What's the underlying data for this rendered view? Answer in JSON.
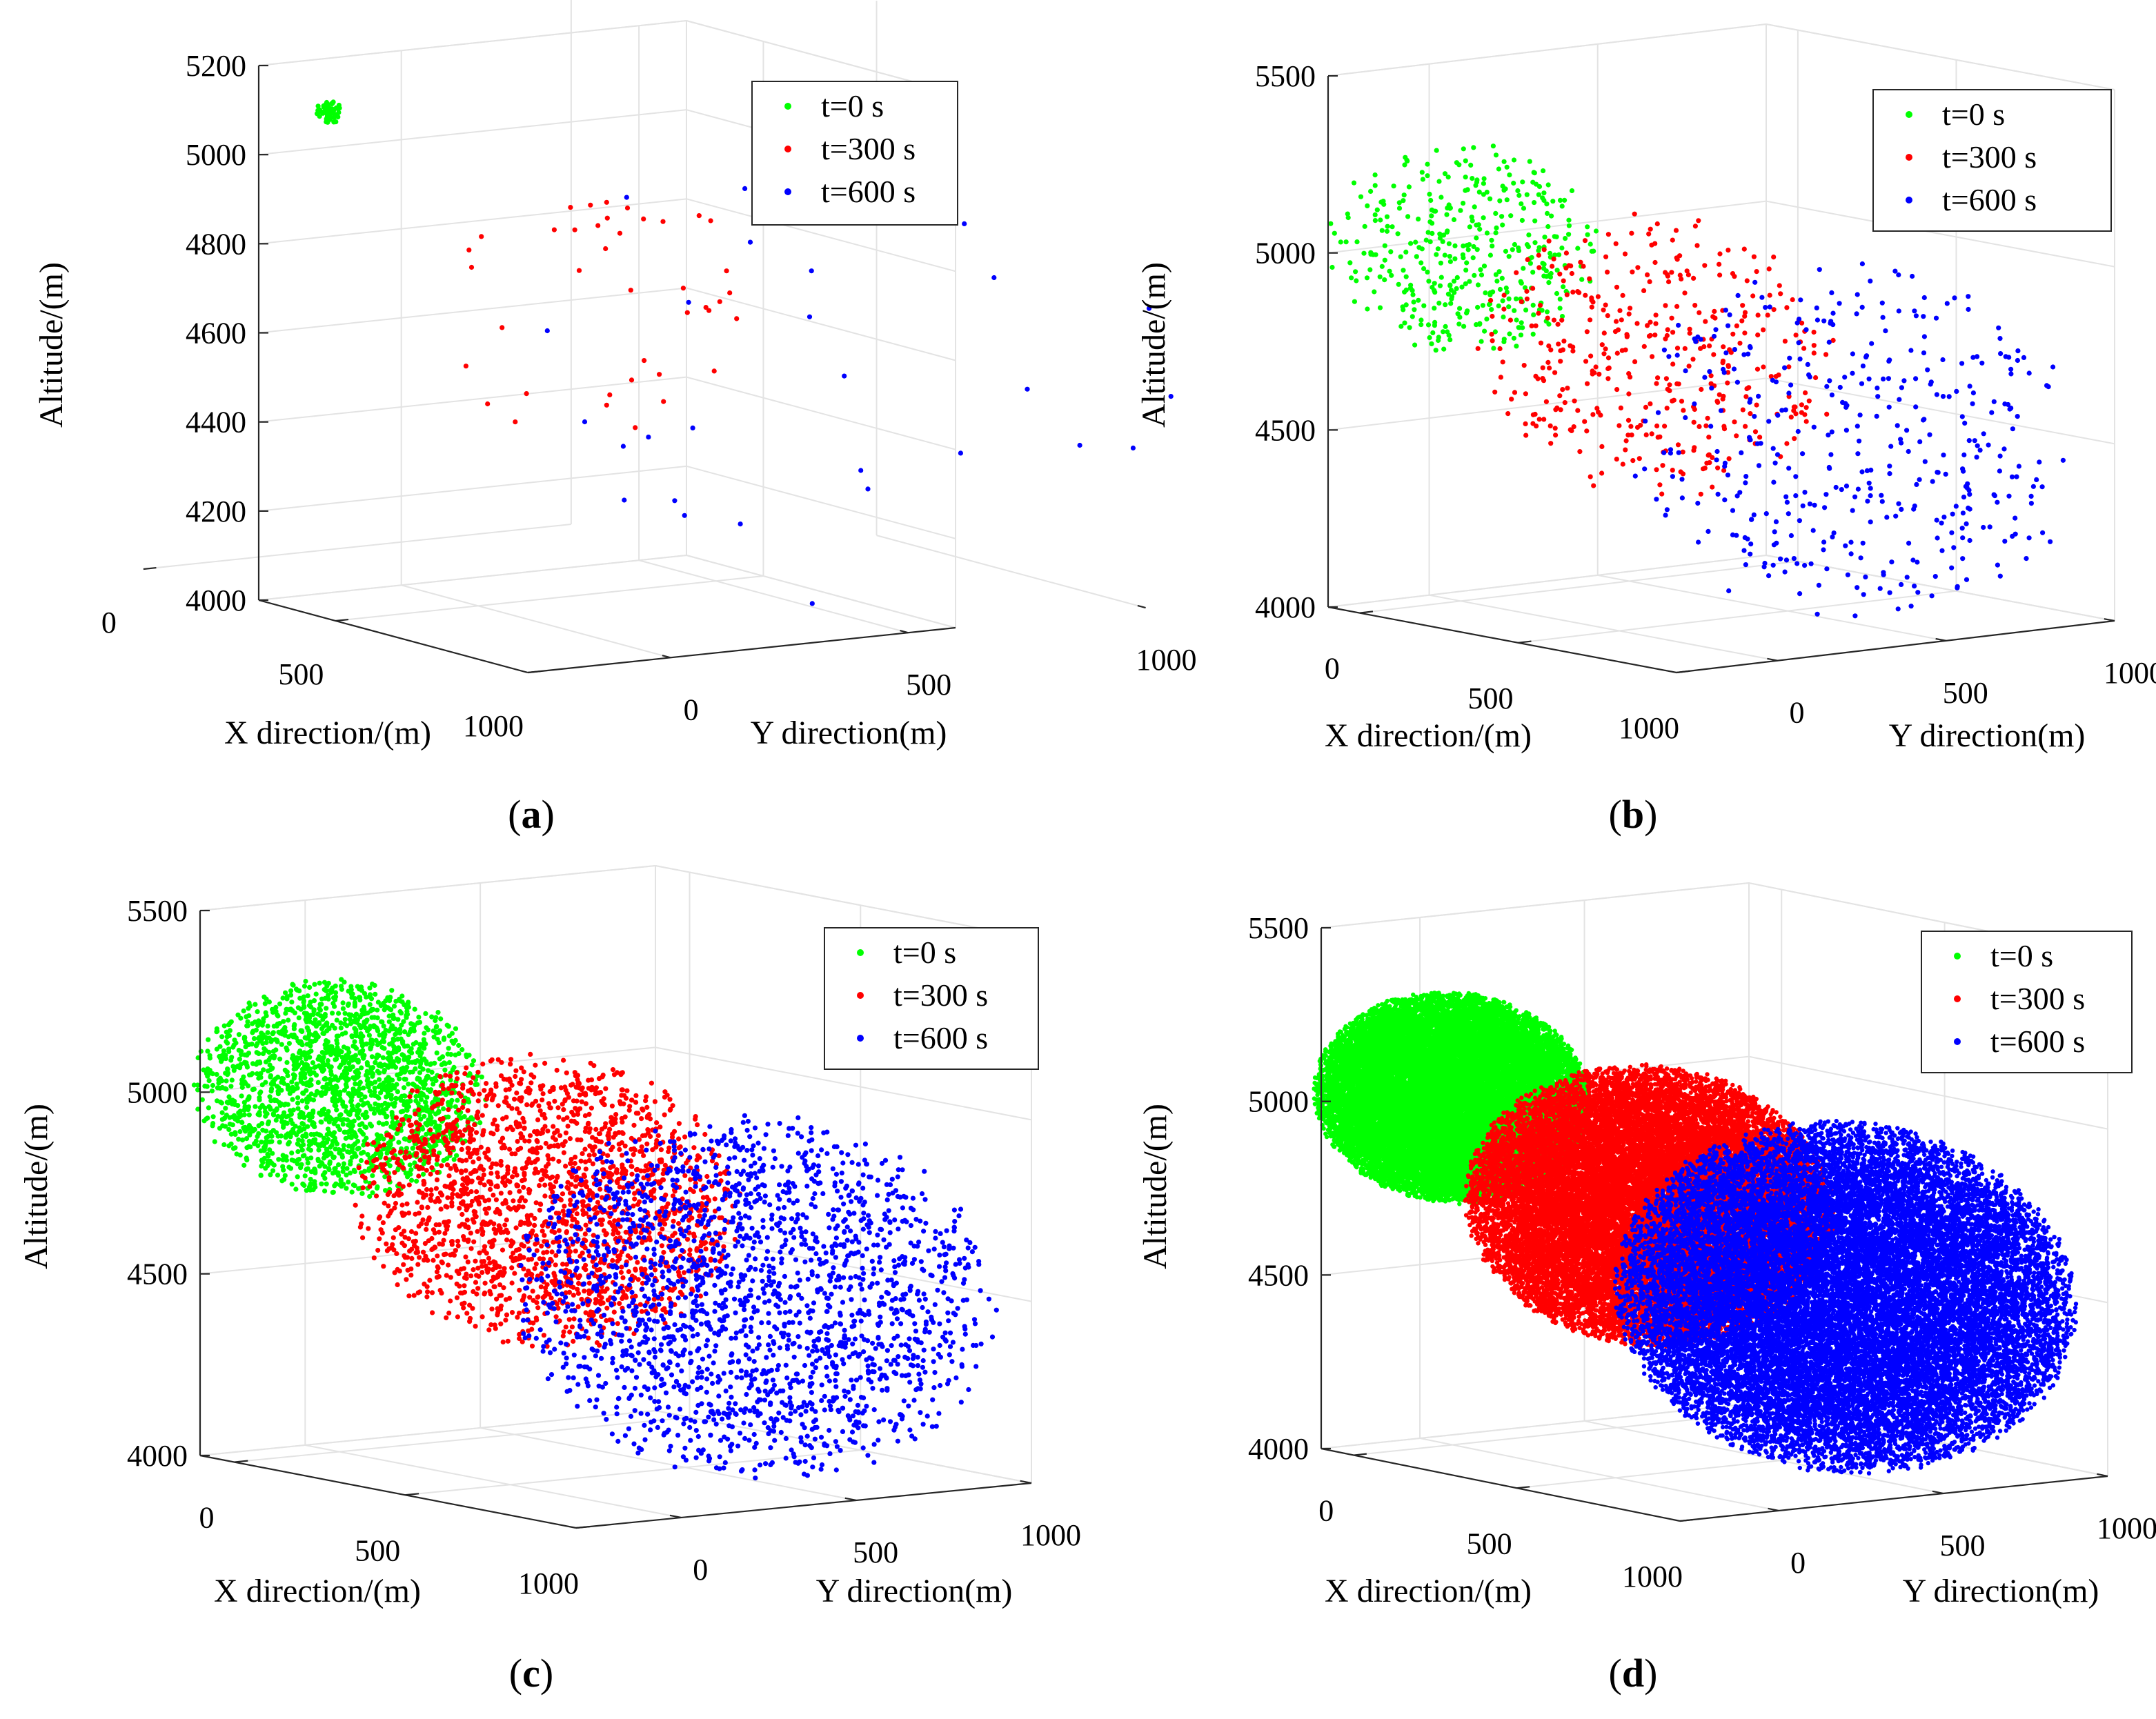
{
  "figure": {
    "panels": [
      {
        "caption_letter": "a"
      },
      {
        "caption_letter": "b"
      },
      {
        "caption_letter": "c"
      },
      {
        "caption_letter": "d"
      }
    ]
  },
  "chart_data": [
    {
      "type": "scatter",
      "panel": "a",
      "xlabel": "X direction/(m)",
      "ylabel": "Y direction(m)",
      "zlabel": "Altitude/(m)",
      "xlim": [
        0,
        1000
      ],
      "ylim": [
        0,
        1000
      ],
      "zlim": [
        4000,
        5200
      ],
      "x_ticks": [
        "0",
        "500",
        "1000"
      ],
      "y_ticks": [
        "0",
        "500",
        "1000"
      ],
      "z_ticks": [
        "4000",
        "4200",
        "4400",
        "4600",
        "4800",
        "5000",
        "5200"
      ],
      "grid": true,
      "legend_position": "top-right",
      "series": [
        {
          "name": "t=0 s",
          "color": "#00ff00",
          "center": [
            50,
            50,
            5000
          ],
          "radius": 25,
          "point_count": 60
        },
        {
          "name": "t=300 s",
          "color": "#ff0000",
          "center": [
            400,
            350,
            4600
          ],
          "radius": 300,
          "point_count": 40
        },
        {
          "name": "t=600 s",
          "color": "#0000ff",
          "center": [
            500,
            700,
            4450
          ],
          "radius": 600,
          "point_count": 30
        }
      ]
    },
    {
      "type": "scatter",
      "panel": "b",
      "xlabel": "X direction/(m)",
      "ylabel": "Y direction(m)",
      "zlabel": "Altitude/(m)",
      "xlim": [
        0,
        1000
      ],
      "ylim": [
        0,
        1000
      ],
      "zlim": [
        4000,
        5500
      ],
      "x_ticks": [
        "0",
        "500",
        "1000"
      ],
      "y_ticks": [
        "0",
        "500",
        "1000"
      ],
      "z_ticks": [
        "4000",
        "4500",
        "5000",
        "5500"
      ],
      "grid": true,
      "legend_position": "top-right",
      "series": [
        {
          "name": "t=0 s",
          "color": "#00ff00",
          "center": [
            0,
            0,
            5000
          ],
          "radius": 300,
          "point_count": 400
        },
        {
          "name": "t=300 s",
          "color": "#ff0000",
          "center": [
            250,
            350,
            4700
          ],
          "radius": 400,
          "point_count": 400
        },
        {
          "name": "t=600 s",
          "color": "#0000ff",
          "center": [
            500,
            700,
            4450
          ],
          "radius": 500,
          "point_count": 400
        }
      ]
    },
    {
      "type": "scatter",
      "panel": "c",
      "xlabel": "X direction/(m)",
      "ylabel": "Y direction(m)",
      "zlabel": "Altitude/(m)",
      "xlim": [
        0,
        1000
      ],
      "ylim": [
        0,
        1000
      ],
      "zlim": [
        4000,
        5500
      ],
      "x_ticks": [
        "0",
        "500",
        "1000"
      ],
      "y_ticks": [
        "0",
        "500",
        "1000"
      ],
      "z_ticks": [
        "4000",
        "4500",
        "5000",
        "5500"
      ],
      "grid": true,
      "legend_position": "top-right",
      "series": [
        {
          "name": "t=0 s",
          "color": "#00ff00",
          "center": [
            0,
            0,
            5000
          ],
          "radius": 300,
          "point_count": 2000
        },
        {
          "name": "t=300 s",
          "color": "#ff0000",
          "center": [
            250,
            350,
            4700
          ],
          "radius": 400,
          "point_count": 2000
        },
        {
          "name": "t=600 s",
          "color": "#0000ff",
          "center": [
            500,
            700,
            4450
          ],
          "radius": 500,
          "point_count": 2000
        }
      ]
    },
    {
      "type": "scatter",
      "panel": "d",
      "xlabel": "X direction/(m)",
      "ylabel": "Y direction(m)",
      "zlabel": "Altitude/(m)",
      "xlim": [
        0,
        1000
      ],
      "ylim": [
        0,
        1000
      ],
      "zlim": [
        4000,
        5500
      ],
      "x_ticks": [
        "0",
        "500",
        "1000"
      ],
      "y_ticks": [
        "0",
        "500",
        "1000"
      ],
      "z_ticks": [
        "4000",
        "4500",
        "5000",
        "5500"
      ],
      "grid": true,
      "legend_position": "top-right",
      "series": [
        {
          "name": "t=0 s",
          "color": "#00ff00",
          "center": [
            0,
            0,
            5000
          ],
          "radius": 300,
          "point_count": 20000
        },
        {
          "name": "t=300 s",
          "color": "#ff0000",
          "center": [
            250,
            350,
            4700
          ],
          "radius": 400,
          "point_count": 20000
        },
        {
          "name": "t=600 s",
          "color": "#0000ff",
          "center": [
            500,
            700,
            4450
          ],
          "radius": 500,
          "point_count": 20000
        }
      ]
    }
  ]
}
